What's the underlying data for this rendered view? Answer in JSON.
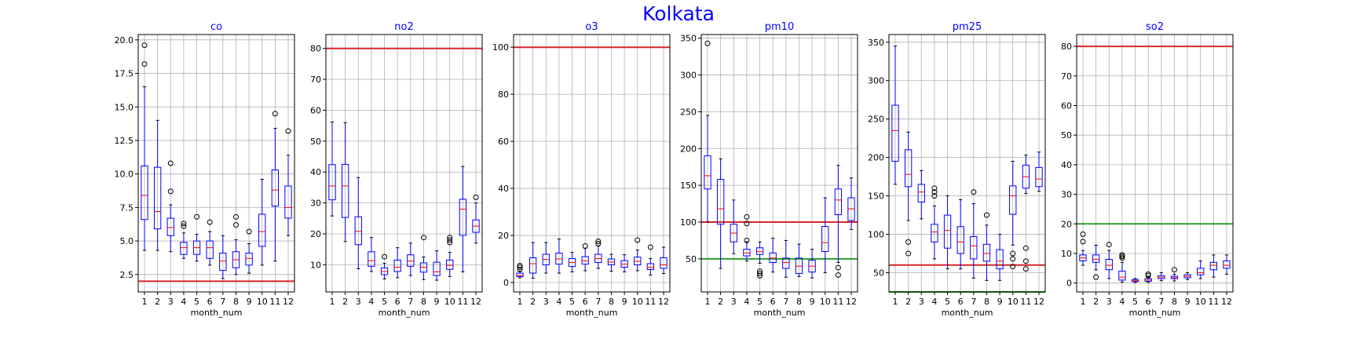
{
  "suptitle": "Kolkata",
  "colors": {
    "title": "#0000ff",
    "box": "#0000ff",
    "whisker": "#0000ff",
    "median": "#ff0000",
    "flier": "#000000",
    "grid": "#b0b0b0",
    "line_red": "#d62728",
    "line_green": "#2ca02c"
  },
  "chart_data": [
    {
      "type": "box",
      "title": "co",
      "xlabel": "month_num",
      "ylabel": "",
      "grid": true,
      "categories": [
        "1",
        "2",
        "3",
        "4",
        "5",
        "6",
        "7",
        "8",
        "9",
        "10",
        "11",
        "12"
      ],
      "ylim": [
        1.2,
        20.4
      ],
      "yticks": [
        2.5,
        5.0,
        7.5,
        10.0,
        12.5,
        15.0,
        17.5,
        20.0
      ],
      "ytick_labels": [
        "2.5",
        "5.0",
        "7.5",
        "10.0",
        "12.5",
        "15.0",
        "17.5",
        "20.0"
      ],
      "hlines": [
        {
          "y": 2.0,
          "color": "red"
        }
      ],
      "boxes": [
        {
          "whislo": 4.3,
          "q1": 6.6,
          "med": 8.4,
          "q3": 10.6,
          "whishi": 16.5,
          "fliers": [
            18.2,
            19.6
          ]
        },
        {
          "whislo": 4.3,
          "q1": 5.9,
          "med": 7.2,
          "q3": 10.5,
          "whishi": 14.0,
          "fliers": []
        },
        {
          "whislo": 4.2,
          "q1": 5.4,
          "med": 6.0,
          "q3": 6.7,
          "whishi": 7.7,
          "fliers": [
            8.7,
            10.8
          ]
        },
        {
          "whislo": 3.7,
          "q1": 4.0,
          "med": 4.5,
          "q3": 4.9,
          "whishi": 5.6,
          "fliers": [
            6.1,
            6.3
          ]
        },
        {
          "whislo": 3.5,
          "q1": 4.0,
          "med": 4.5,
          "q3": 5.0,
          "whishi": 5.5,
          "fliers": [
            6.8
          ]
        },
        {
          "whislo": 3.2,
          "q1": 3.7,
          "med": 4.5,
          "q3": 5.0,
          "whishi": 5.7,
          "fliers": [
            6.4
          ]
        },
        {
          "whislo": 2.2,
          "q1": 2.8,
          "med": 3.5,
          "q3": 4.1,
          "whishi": 5.4,
          "fliers": []
        },
        {
          "whislo": 2.5,
          "q1": 3.0,
          "med": 3.6,
          "q3": 4.2,
          "whishi": 5.1,
          "fliers": [
            6.2,
            6.8
          ]
        },
        {
          "whislo": 2.6,
          "q1": 3.2,
          "med": 3.7,
          "q3": 4.1,
          "whishi": 4.8,
          "fliers": [
            5.7
          ]
        },
        {
          "whislo": 3.2,
          "q1": 4.6,
          "med": 5.7,
          "q3": 7.0,
          "whishi": 9.6,
          "fliers": []
        },
        {
          "whislo": 3.5,
          "q1": 7.6,
          "med": 8.8,
          "q3": 10.3,
          "whishi": 13.4,
          "fliers": [
            14.5
          ]
        },
        {
          "whislo": 5.4,
          "q1": 6.7,
          "med": 7.5,
          "q3": 9.1,
          "whishi": 11.4,
          "fliers": [
            13.2
          ]
        }
      ]
    },
    {
      "type": "box",
      "title": "no2",
      "xlabel": "month_num",
      "ylabel": "",
      "grid": true,
      "categories": [
        "1",
        "2",
        "3",
        "4",
        "5",
        "6",
        "7",
        "8",
        "9",
        "10",
        "11",
        "12"
      ],
      "ylim": [
        1.2,
        84.5
      ],
      "yticks": [
        10,
        20,
        30,
        40,
        50,
        60,
        70,
        80
      ],
      "ytick_labels": [
        "10",
        "20",
        "30",
        "40",
        "50",
        "60",
        "70",
        "80"
      ],
      "hlines": [
        {
          "y": 80,
          "color": "red"
        }
      ],
      "boxes": [
        {
          "whislo": 25.8,
          "q1": 31.0,
          "med": 35.5,
          "q3": 42.4,
          "whishi": 56.2,
          "fliers": []
        },
        {
          "whislo": 17.5,
          "q1": 25.3,
          "med": 35.5,
          "q3": 42.5,
          "whishi": 56.0,
          "fliers": []
        },
        {
          "whislo": 8.7,
          "q1": 16.5,
          "med": 20.8,
          "q3": 25.5,
          "whishi": 38.2,
          "fliers": []
        },
        {
          "whislo": 7.8,
          "q1": 9.5,
          "med": 11.3,
          "q3": 14.2,
          "whishi": 18.8,
          "fliers": []
        },
        {
          "whislo": 5.4,
          "q1": 6.8,
          "med": 7.8,
          "q3": 9.0,
          "whishi": 10.5,
          "fliers": [
            12.6
          ]
        },
        {
          "whislo": 5.8,
          "q1": 7.8,
          "med": 9.2,
          "q3": 11.5,
          "whishi": 15.5,
          "fliers": []
        },
        {
          "whislo": 6.5,
          "q1": 9.5,
          "med": 11.2,
          "q3": 13.2,
          "whishi": 17.0,
          "fliers": []
        },
        {
          "whislo": 5.2,
          "q1": 7.6,
          "med": 9.2,
          "q3": 10.6,
          "whishi": 12.5,
          "fliers": [
            18.8
          ]
        },
        {
          "whislo": 5.0,
          "q1": 6.5,
          "med": 7.7,
          "q3": 10.8,
          "whishi": 14.5,
          "fliers": []
        },
        {
          "whislo": 6.2,
          "q1": 8.5,
          "med": 9.8,
          "q3": 11.5,
          "whishi": 14.0,
          "fliers": [
            17.2,
            18.0,
            18.8
          ]
        },
        {
          "whislo": 7.7,
          "q1": 19.5,
          "med": 28.0,
          "q3": 31.2,
          "whishi": 41.8,
          "fliers": []
        },
        {
          "whislo": 17.0,
          "q1": 20.5,
          "med": 22.5,
          "q3": 24.5,
          "whishi": 30.0,
          "fliers": [
            31.8
          ]
        }
      ]
    },
    {
      "type": "box",
      "title": "o3",
      "xlabel": "month_num",
      "ylabel": "",
      "grid": true,
      "categories": [
        "1",
        "2",
        "3",
        "4",
        "5",
        "6",
        "7",
        "8",
        "9",
        "10",
        "11",
        "12"
      ],
      "ylim": [
        -4,
        105.4
      ],
      "yticks": [
        0,
        20,
        40,
        60,
        80,
        100
      ],
      "ytick_labels": [
        "0",
        "20",
        "40",
        "60",
        "80",
        "100"
      ],
      "hlines": [
        {
          "y": 100,
          "color": "red"
        }
      ],
      "boxes": [
        {
          "whislo": 2.0,
          "q1": 2.5,
          "med": 3.0,
          "q3": 4.0,
          "whishi": 4.8,
          "fliers": [
            5.5,
            6.5,
            7.2
          ]
        },
        {
          "whislo": 1.8,
          "q1": 4.0,
          "med": 8.0,
          "q3": 10.5,
          "whishi": 17.0,
          "fliers": []
        },
        {
          "whislo": 4.0,
          "q1": 7.5,
          "med": 9.8,
          "q3": 12.0,
          "whishi": 17.0,
          "fliers": []
        },
        {
          "whislo": 4.0,
          "q1": 7.8,
          "med": 10.0,
          "q3": 12.5,
          "whishi": 18.5,
          "fliers": []
        },
        {
          "whislo": 4.5,
          "q1": 6.8,
          "med": 8.5,
          "q3": 10.2,
          "whishi": 12.8,
          "fliers": []
        },
        {
          "whislo": 5.0,
          "q1": 7.8,
          "med": 9.2,
          "q3": 11.0,
          "whishi": 14.5,
          "fliers": [
            15.5
          ]
        },
        {
          "whislo": 6.0,
          "q1": 8.5,
          "med": 10.2,
          "q3": 12.0,
          "whishi": 15.5,
          "fliers": [
            16.5,
            17.5
          ]
        },
        {
          "whislo": 4.8,
          "q1": 7.5,
          "med": 8.7,
          "q3": 10.0,
          "whishi": 12.0,
          "fliers": []
        },
        {
          "whislo": 4.5,
          "q1": 6.5,
          "med": 7.8,
          "q3": 9.3,
          "whishi": 11.8,
          "fliers": []
        },
        {
          "whislo": 5.0,
          "q1": 7.5,
          "med": 9.0,
          "q3": 10.8,
          "whishi": 13.8,
          "fliers": [
            18.0
          ]
        },
        {
          "whislo": 3.2,
          "q1": 5.5,
          "med": 6.5,
          "q3": 8.0,
          "whishi": 10.2,
          "fliers": [
            15.0
          ]
        },
        {
          "whislo": 3.8,
          "q1": 6.0,
          "med": 7.5,
          "q3": 10.5,
          "whishi": 15.0,
          "fliers": []
        }
      ]
    },
    {
      "type": "box",
      "title": "pm10",
      "xlabel": "month_num",
      "ylabel": "",
      "grid": true,
      "categories": [
        "1",
        "2",
        "3",
        "4",
        "5",
        "6",
        "7",
        "8",
        "9",
        "10",
        "11",
        "12"
      ],
      "ylim": [
        5,
        355
      ],
      "yticks": [
        50,
        100,
        150,
        200,
        250,
        300,
        350
      ],
      "ytick_labels": [
        "50",
        "100",
        "150",
        "200",
        "250",
        "300",
        "350"
      ],
      "hlines": [
        {
          "y": 100,
          "color": "red"
        },
        {
          "y": 50,
          "color": "green"
        }
      ],
      "boxes": [
        {
          "whislo": 100,
          "q1": 145,
          "med": 163,
          "q3": 190,
          "whishi": 245,
          "fliers": [
            343
          ]
        },
        {
          "whislo": 37,
          "q1": 97,
          "med": 118,
          "q3": 158,
          "whishi": 186,
          "fliers": []
        },
        {
          "whislo": 57,
          "q1": 73,
          "med": 85,
          "q3": 97,
          "whishi": 130,
          "fliers": []
        },
        {
          "whislo": 47,
          "q1": 54,
          "med": 58,
          "q3": 63,
          "whishi": 73,
          "fliers": [
            75,
            98,
            107
          ]
        },
        {
          "whislo": 44,
          "q1": 56,
          "med": 60,
          "q3": 65,
          "whishi": 73,
          "fliers": [
            27,
            30,
            33
          ]
        },
        {
          "whislo": 32,
          "q1": 45,
          "med": 51,
          "q3": 58,
          "whishi": 78,
          "fliers": []
        },
        {
          "whislo": 25,
          "q1": 37,
          "med": 45,
          "q3": 51,
          "whishi": 75,
          "fliers": []
        },
        {
          "whislo": 26,
          "q1": 30,
          "med": 40,
          "q3": 51,
          "whishi": 70,
          "fliers": []
        },
        {
          "whislo": 24,
          "q1": 32,
          "med": 40,
          "q3": 48,
          "whishi": 63,
          "fliers": []
        },
        {
          "whislo": 31,
          "q1": 60,
          "med": 72,
          "q3": 94,
          "whishi": 133,
          "fliers": []
        },
        {
          "whislo": 45,
          "q1": 110,
          "med": 130,
          "q3": 145,
          "whishi": 177,
          "fliers": [
            28,
            38
          ]
        },
        {
          "whislo": 90,
          "q1": 102,
          "med": 118,
          "q3": 133,
          "whishi": 160,
          "fliers": []
        }
      ]
    },
    {
      "type": "box",
      "title": "pm25",
      "xlabel": "month_num",
      "ylabel": "",
      "grid": true,
      "categories": [
        "1",
        "2",
        "3",
        "4",
        "5",
        "6",
        "7",
        "8",
        "9",
        "10",
        "11",
        "12"
      ],
      "ylim": [
        25,
        360
      ],
      "yticks": [
        50,
        100,
        150,
        200,
        250,
        300,
        350
      ],
      "ytick_labels": [
        "50",
        "100",
        "150",
        "200",
        "250",
        "300",
        "350"
      ],
      "hlines": [
        {
          "y": 60,
          "color": "red"
        },
        {
          "y": 25,
          "color": "green"
        }
      ],
      "boxes": [
        {
          "whislo": 165,
          "q1": 195,
          "med": 235,
          "q3": 268,
          "whishi": 345,
          "fliers": []
        },
        {
          "whislo": 118,
          "q1": 162,
          "med": 178,
          "q3": 210,
          "whishi": 233,
          "fliers": [
            75,
            90
          ]
        },
        {
          "whislo": 120,
          "q1": 142,
          "med": 155,
          "q3": 165,
          "whishi": 183,
          "fliers": []
        },
        {
          "whislo": 68,
          "q1": 90,
          "med": 103,
          "q3": 113,
          "whishi": 137,
          "fliers": [
            150,
            155,
            160
          ]
        },
        {
          "whislo": 55,
          "q1": 82,
          "med": 105,
          "q3": 125,
          "whishi": 150,
          "fliers": []
        },
        {
          "whislo": 55,
          "q1": 75,
          "med": 90,
          "q3": 110,
          "whishi": 145,
          "fliers": []
        },
        {
          "whislo": 43,
          "q1": 68,
          "med": 85,
          "q3": 97,
          "whishi": 140,
          "fliers": [
            155
          ]
        },
        {
          "whislo": 40,
          "q1": 65,
          "med": 75,
          "q3": 87,
          "whishi": 112,
          "fliers": [
            125
          ]
        },
        {
          "whislo": 40,
          "q1": 55,
          "med": 65,
          "q3": 80,
          "whishi": 100,
          "fliers": []
        },
        {
          "whislo": 86,
          "q1": 126,
          "med": 150,
          "q3": 163,
          "whishi": 195,
          "fliers": [
            58,
            68,
            75
          ]
        },
        {
          "whislo": 153,
          "q1": 160,
          "med": 175,
          "q3": 190,
          "whishi": 203,
          "fliers": [
            55,
            65,
            82
          ]
        },
        {
          "whislo": 156,
          "q1": 162,
          "med": 172,
          "q3": 187,
          "whishi": 207,
          "fliers": []
        }
      ]
    },
    {
      "type": "box",
      "title": "so2",
      "xlabel": "month_num",
      "ylabel": "",
      "grid": true,
      "categories": [
        "1",
        "2",
        "3",
        "4",
        "5",
        "6",
        "7",
        "8",
        "9",
        "10",
        "11",
        "12"
      ],
      "ylim": [
        -3,
        84
      ],
      "yticks": [
        0,
        10,
        20,
        30,
        40,
        50,
        60,
        70,
        80
      ],
      "ytick_labels": [
        "0",
        "10",
        "20",
        "30",
        "40",
        "50",
        "60",
        "70",
        "80"
      ],
      "hlines": [
        {
          "y": 80,
          "color": "red"
        },
        {
          "y": 20,
          "color": "green"
        }
      ],
      "boxes": [
        {
          "whislo": 6.0,
          "q1": 7.5,
          "med": 8.5,
          "q3": 9.5,
          "whishi": 11.0,
          "fliers": [
            14.0,
            16.5
          ]
        },
        {
          "whislo": 4.5,
          "q1": 7.0,
          "med": 8.0,
          "q3": 9.5,
          "whishi": 12.8,
          "fliers": [
            2.0
          ]
        },
        {
          "whislo": 1.5,
          "q1": 4.5,
          "med": 6.0,
          "q3": 8.0,
          "whishi": 11.0,
          "fliers": [
            13.0
          ]
        },
        {
          "whislo": 0.3,
          "q1": 1.0,
          "med": 2.0,
          "q3": 4.0,
          "whishi": 7.0,
          "fliers": [
            8.5,
            9.0,
            9.5
          ]
        },
        {
          "whislo": 0.2,
          "q1": 0.5,
          "med": 0.8,
          "q3": 1.2,
          "whishi": 1.5,
          "fliers": []
        },
        {
          "whislo": 0.2,
          "q1": 0.6,
          "med": 1.0,
          "q3": 1.5,
          "whishi": 2.0,
          "fliers": [
            2.5,
            3.0
          ]
        },
        {
          "whislo": 0.8,
          "q1": 1.5,
          "med": 2.0,
          "q3": 2.5,
          "whishi": 3.5,
          "fliers": []
        },
        {
          "whislo": 0.7,
          "q1": 1.5,
          "med": 1.8,
          "q3": 2.3,
          "whishi": 3.0,
          "fliers": [
            4.5
          ]
        },
        {
          "whislo": 1.2,
          "q1": 1.8,
          "med": 2.3,
          "q3": 2.8,
          "whishi": 3.5,
          "fliers": []
        },
        {
          "whislo": 1.5,
          "q1": 2.8,
          "med": 3.5,
          "q3": 5.0,
          "whishi": 7.5,
          "fliers": []
        },
        {
          "whislo": 2.0,
          "q1": 4.5,
          "med": 6.0,
          "q3": 7.0,
          "whishi": 9.5,
          "fliers": []
        },
        {
          "whislo": 3.0,
          "q1": 5.0,
          "med": 6.0,
          "q3": 7.5,
          "whishi": 9.5,
          "fliers": []
        }
      ]
    }
  ]
}
